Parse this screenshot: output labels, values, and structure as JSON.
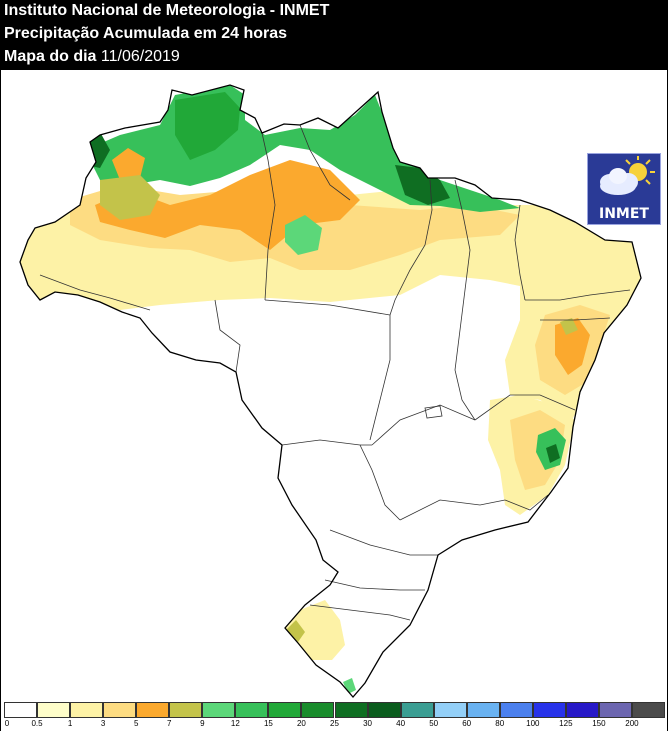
{
  "header": {
    "line1": "Instituto Nacional de Meteorologia - INMET",
    "line2": "Precipitação Acumulada em 24 horas",
    "line3_prefix": "Mapa do dia",
    "line3_date": "11/06/2019"
  },
  "logo": {
    "text": "INMET",
    "icon": "sun-cloud-icon"
  },
  "legend": {
    "tick_labels": [
      "0",
      "0.5",
      "1",
      "3",
      "5",
      "7",
      "9",
      "12",
      "15",
      "20",
      "25",
      "30",
      "40",
      "50",
      "60",
      "80",
      "100",
      "125",
      "150",
      "200"
    ],
    "colors": [
      "#ffffff",
      "#fefdc9",
      "#fdf2a6",
      "#fddc82",
      "#fba92e",
      "#c3c34a",
      "#5cd779",
      "#37c05a",
      "#21a838",
      "#198c2c",
      "#0f6e22",
      "#0a5c1d",
      "#3b9e93",
      "#93cff7",
      "#69b2f1",
      "#4b80ee",
      "#2833ea",
      "#2719c8",
      "#6c66b0",
      "#4b4b4b"
    ]
  },
  "map_colors": {
    "white": "#ffffff",
    "light_yellow": "#fefdc9",
    "yellow": "#fdf2a6",
    "gold": "#fddc82",
    "orange": "#fba92e",
    "olive": "#c3c34a",
    "light_green": "#5cd779",
    "green": "#37c05a",
    "mid_green": "#21a838",
    "dark_green": "#0f6e22",
    "teal": "#3b9e93"
  }
}
